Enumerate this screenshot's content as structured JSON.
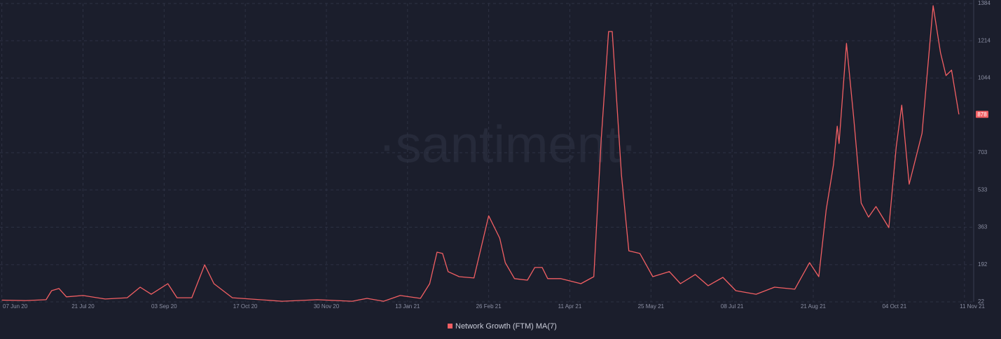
{
  "chart_data": {
    "type": "line",
    "watermark": "·santiment·",
    "x": [
      "2020-06-07",
      "2020-06-20",
      "2020-07-01",
      "2020-07-04",
      "2020-07-08",
      "2020-07-12",
      "2020-07-21",
      "2020-08-02",
      "2020-08-14",
      "2020-08-21",
      "2020-08-27",
      "2020-09-05",
      "2020-09-10",
      "2020-09-18",
      "2020-09-25",
      "2020-09-30",
      "2020-10-10",
      "2020-11-06",
      "2020-11-25",
      "2020-12-14",
      "2020-12-22",
      "2020-12-31",
      "2021-01-09",
      "2021-01-20",
      "2021-01-25",
      "2021-01-29",
      "2021-02-01",
      "2021-02-04",
      "2021-02-10",
      "2021-02-18",
      "2021-02-26",
      "2021-03-04",
      "2021-03-07",
      "2021-03-12",
      "2021-03-19",
      "2021-03-23",
      "2021-03-27",
      "2021-03-30",
      "2021-04-06",
      "2021-04-17",
      "2021-04-24",
      "2021-04-28",
      "2021-05-02",
      "2021-05-04",
      "2021-05-09",
      "2021-05-13",
      "2021-05-19",
      "2021-05-26",
      "2021-06-04",
      "2021-06-10",
      "2021-06-18",
      "2021-06-25",
      "2021-07-03",
      "2021-07-10",
      "2021-07-21",
      "2021-07-31",
      "2021-08-11",
      "2021-08-19",
      "2021-08-24",
      "2021-08-28",
      "2021-09-01",
      "2021-09-03",
      "2021-09-04",
      "2021-09-08",
      "2021-09-12",
      "2021-09-16",
      "2021-09-20",
      "2021-09-24",
      "2021-10-01",
      "2021-10-05",
      "2021-10-08",
      "2021-10-12",
      "2021-10-19",
      "2021-10-25",
      "2021-10-29",
      "2021-11-01",
      "2021-11-04",
      "2021-11-08"
    ],
    "series": [
      {
        "name": "Network Growth (FTM) MA(7)",
        "color": "#f25f63",
        "values": [
          30,
          28,
          32,
          73,
          83,
          45,
          51,
          35,
          41,
          89,
          57,
          105,
          41,
          41,
          191,
          105,
          41,
          25,
          32,
          25,
          38,
          25,
          51,
          38,
          105,
          249,
          243,
          160,
          137,
          131,
          415,
          313,
          201,
          128,
          121,
          179,
          179,
          128,
          128,
          105,
          137,
          760,
          1256,
          1256,
          601,
          255,
          243,
          137,
          160,
          105,
          147,
          96,
          134,
          73,
          57,
          89,
          80,
          201,
          137,
          441,
          649,
          824,
          745,
          1202,
          856,
          473,
          409,
          457,
          361,
          729,
          920,
          559,
          792,
          1374,
          1160,
          1055,
          1080,
          878
        ]
      }
    ],
    "xlim": [
      "2020-06-06",
      "2021-11-16"
    ],
    "xticks": [
      {
        "value": "2020-06-07",
        "label": "07 Jun 20"
      },
      {
        "value": "2020-07-21",
        "label": "21 Jul 20"
      },
      {
        "value": "2020-09-03",
        "label": "03 Sep 20"
      },
      {
        "value": "2020-10-17",
        "label": "17 Oct 20"
      },
      {
        "value": "2020-11-30",
        "label": "30 Nov 20"
      },
      {
        "value": "2021-01-13",
        "label": "13 Jan 21"
      },
      {
        "value": "2021-02-26",
        "label": "26 Feb 21"
      },
      {
        "value": "2021-04-11",
        "label": "11 Apr 21"
      },
      {
        "value": "2021-05-25",
        "label": "25 May 21"
      },
      {
        "value": "2021-07-08",
        "label": "08 Jul 21"
      },
      {
        "value": "2021-08-21",
        "label": "21 Aug 21"
      },
      {
        "value": "2021-10-04",
        "label": "04 Oct 21"
      },
      {
        "value": "2021-11-11",
        "label": "11 Nov 21"
      }
    ],
    "ylim": [
      22,
      1384
    ],
    "yticks": [
      22,
      192,
      363,
      533,
      703,
      1044,
      1214,
      1384
    ],
    "grid": true
  }
}
